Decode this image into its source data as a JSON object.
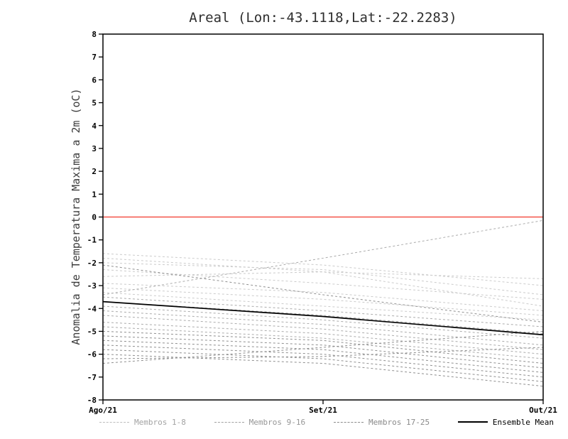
{
  "chart": {
    "title": "Areal (Lon:-43.1118,Lat:-22.2283)",
    "ylabel": "Anomalia de Temperatura Maxima a 2m (oC)"
  },
  "chart_data": {
    "type": "line",
    "title": "Areal (Lon:-43.1118,Lat:-22.2283)",
    "xlabel": "",
    "ylabel": "Anomalia de Temperatura Maxima a 2m (oC)",
    "x_categories": [
      "Ago/21",
      "Set/21",
      "Out/21"
    ],
    "ylim": [
      -8,
      8
    ],
    "ytick_step": 1,
    "grid": false,
    "axis_color": "#000000",
    "zero_line_color": "#f2392c",
    "groups": [
      {
        "name": "Membros 1-8",
        "color": "#cbcbcb",
        "style": "dashed",
        "members": [
          [
            -1.6,
            -2.1,
            -3.0
          ],
          [
            -1.8,
            -2.4,
            -2.7
          ],
          [
            -2.0,
            -2.3,
            -3.4
          ],
          [
            -2.3,
            -2.9,
            -3.6
          ],
          [
            -2.6,
            -2.4,
            -3.9
          ],
          [
            -2.9,
            -3.3,
            -4.1
          ],
          [
            -3.1,
            -3.6,
            -4.3
          ],
          [
            -3.3,
            -3.9,
            -4.5
          ]
        ]
      },
      {
        "name": "Membros 9-16",
        "color": "#ababab",
        "style": "dashed",
        "members": [
          [
            -3.4,
            -1.8,
            -0.15
          ],
          [
            -3.5,
            -4.1,
            -4.8
          ],
          [
            -3.7,
            -4.3,
            -5.1
          ],
          [
            -3.9,
            -4.5,
            -5.3
          ],
          [
            -4.1,
            -4.7,
            -5.6
          ],
          [
            -4.3,
            -4.9,
            -5.8
          ],
          [
            -4.6,
            -5.1,
            -6.0
          ],
          [
            -4.8,
            -5.3,
            -6.2
          ]
        ]
      },
      {
        "name": "Membros 17-25",
        "color": "#8f8f8f",
        "style": "dashed",
        "members": [
          [
            -5.0,
            -5.4,
            -6.4
          ],
          [
            -5.2,
            -5.6,
            -6.6
          ],
          [
            -5.4,
            -5.8,
            -6.8
          ],
          [
            -5.6,
            -6.0,
            -7.0
          ],
          [
            -5.8,
            -6.2,
            -7.2
          ],
          [
            -6.0,
            -6.4,
            -7.4
          ],
          [
            -6.2,
            -6.1,
            -5.7
          ],
          [
            -6.4,
            -5.7,
            -5.0
          ],
          [
            -2.1,
            -3.4,
            -4.6
          ]
        ]
      }
    ],
    "mean": {
      "name": "Ensemble Mean",
      "color": "#000000",
      "style": "solid",
      "values": [
        -3.7,
        -4.35,
        -5.15
      ]
    },
    "legend_position": "bottom"
  },
  "legend": {
    "entries": [
      {
        "label": "Membros 1-8",
        "color": "#bdbdbd",
        "text_color": "#a3a3a3",
        "dashed": true
      },
      {
        "label": "Membros 9-16",
        "color": "#a2a2a2",
        "text_color": "#969696",
        "dashed": true
      },
      {
        "label": "Membros 17-25",
        "color": "#8a8a8a",
        "text_color": "#8a8a8a",
        "dashed": true
      },
      {
        "label": "Ensemble Mean",
        "color": "#000000",
        "text_color": "#000000",
        "dashed": false
      }
    ]
  }
}
